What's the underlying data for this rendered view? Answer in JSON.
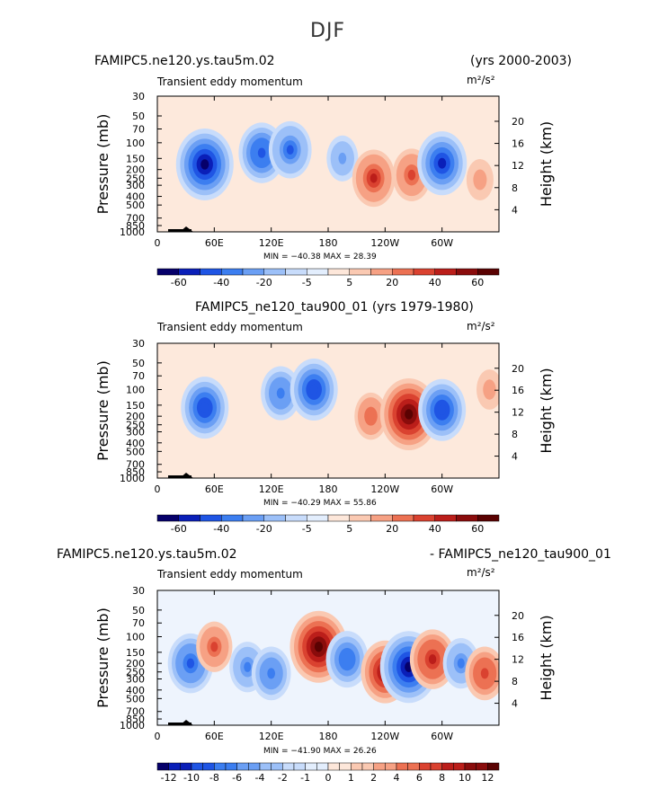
{
  "page_title": "DJF",
  "panels": [
    {
      "left_title": "FAMIPC5.ne120.ys.tau5m.02",
      "right_title": "(yrs 2000-2003)",
      "subtitle": "Transient eddy momentum",
      "units": "m²/s²",
      "min_max": "MIN = −40.38   MAX =  28.39"
    },
    {
      "center_title": "FAMIPC5_ne120_tau900_01 (yrs 1979-1980)",
      "subtitle": "Transient eddy momentum",
      "units": "m²/s²",
      "min_max": "MIN = −40.29   MAX =  55.86"
    },
    {
      "left_title": "FAMIPC5.ne120.ys.tau5m.02",
      "right_title": "- FAMIPC5_ne120_tau900_01",
      "subtitle": "Transient eddy momentum",
      "units": "m²/s²",
      "min_max": "MIN = −41.90   MAX =  26.26"
    }
  ],
  "chart_data": [
    {
      "type": "heatmap",
      "title": "FAMIPC5.ne120.ys.tau5m.02 (yrs 2000-2003)",
      "subtitle": "Transient eddy momentum",
      "xlabel": "",
      "ylabel": "Pressure (mb)",
      "ylabel_right": "Height (km)",
      "x_ticks": [
        "0",
        "60E",
        "120E",
        "180",
        "120W",
        "60W"
      ],
      "y_ticks": [
        "30",
        "50",
        "70",
        "100",
        "150",
        "200",
        "250",
        "300",
        "400",
        "500",
        "700",
        "850",
        "1000"
      ],
      "height_ticks": [
        "20",
        "16",
        "12",
        "8",
        "4"
      ],
      "min": -40.38,
      "max": 28.39,
      "colorbar_levels": [
        "-60",
        "-40",
        "-20",
        "-5",
        "5",
        "20",
        "40",
        "60"
      ],
      "features": [
        {
          "lon": 50,
          "p": 175,
          "value": -35
        },
        {
          "lon": 110,
          "p": 130,
          "value": -25
        },
        {
          "lon": 140,
          "p": 120,
          "value": -22
        },
        {
          "lon": 195,
          "p": 150,
          "value": -12
        },
        {
          "lon": 228,
          "p": 250,
          "value": 22
        },
        {
          "lon": 268,
          "p": 230,
          "value": 18
        },
        {
          "lon": 300,
          "p": 170,
          "value": -28
        },
        {
          "lon": 340,
          "p": 260,
          "value": 8
        }
      ]
    },
    {
      "type": "heatmap",
      "title": "FAMIPC5_ne120_tau900_01 (yrs 1979-1980)",
      "subtitle": "Transient eddy momentum",
      "xlabel": "",
      "ylabel": "Pressure (mb)",
      "ylabel_right": "Height (km)",
      "x_ticks": [
        "0",
        "60E",
        "120E",
        "180",
        "120W",
        "60W"
      ],
      "y_ticks": [
        "30",
        "50",
        "70",
        "100",
        "150",
        "200",
        "250",
        "300",
        "400",
        "500",
        "700",
        "850",
        "1000"
      ],
      "height_ticks": [
        "20",
        "16",
        "12",
        "8",
        "4"
      ],
      "min": -40.29,
      "max": 55.86,
      "colorbar_levels": [
        "-60",
        "-40",
        "-20",
        "-5",
        "5",
        "20",
        "40",
        "60"
      ],
      "features": [
        {
          "lon": 50,
          "p": 160,
          "value": -30
        },
        {
          "lon": 130,
          "p": 110,
          "value": -22
        },
        {
          "lon": 165,
          "p": 100,
          "value": -30
        },
        {
          "lon": 225,
          "p": 200,
          "value": 15
        },
        {
          "lon": 265,
          "p": 190,
          "value": 40
        },
        {
          "lon": 300,
          "p": 170,
          "value": -30
        },
        {
          "lon": 350,
          "p": 100,
          "value": 8
        }
      ]
    },
    {
      "type": "heatmap",
      "title": "FAMIPC5.ne120.ys.tau5m.02 - FAMIPC5_ne120_tau900_01",
      "subtitle": "Transient eddy momentum",
      "xlabel": "",
      "ylabel": "Pressure (mb)",
      "ylabel_right": "Height (km)",
      "x_ticks": [
        "0",
        "60E",
        "120E",
        "180",
        "120W",
        "60W"
      ],
      "y_ticks": [
        "30",
        "50",
        "70",
        "100",
        "150",
        "200",
        "250",
        "300",
        "400",
        "500",
        "700",
        "850",
        "1000"
      ],
      "height_ticks": [
        "20",
        "16",
        "12",
        "8",
        "4"
      ],
      "min": -41.9,
      "max": 26.26,
      "colorbar_levels": [
        "-12",
        "-10",
        "-8",
        "-6",
        "-4",
        "-2",
        "-1",
        "0",
        "1",
        "2",
        "4",
        "6",
        "8",
        "10",
        "12"
      ],
      "features": [
        {
          "lon": 35,
          "p": 200,
          "value": -9
        },
        {
          "lon": 60,
          "p": 130,
          "value": 6
        },
        {
          "lon": 95,
          "p": 220,
          "value": -6
        },
        {
          "lon": 120,
          "p": 260,
          "value": -7
        },
        {
          "lon": 170,
          "p": 130,
          "value": 13
        },
        {
          "lon": 200,
          "p": 180,
          "value": -8
        },
        {
          "lon": 240,
          "p": 250,
          "value": 10
        },
        {
          "lon": 265,
          "p": 220,
          "value": -13
        },
        {
          "lon": 290,
          "p": 180,
          "value": 9
        },
        {
          "lon": 320,
          "p": 200,
          "value": -6
        },
        {
          "lon": 345,
          "p": 260,
          "value": 7
        }
      ]
    }
  ]
}
